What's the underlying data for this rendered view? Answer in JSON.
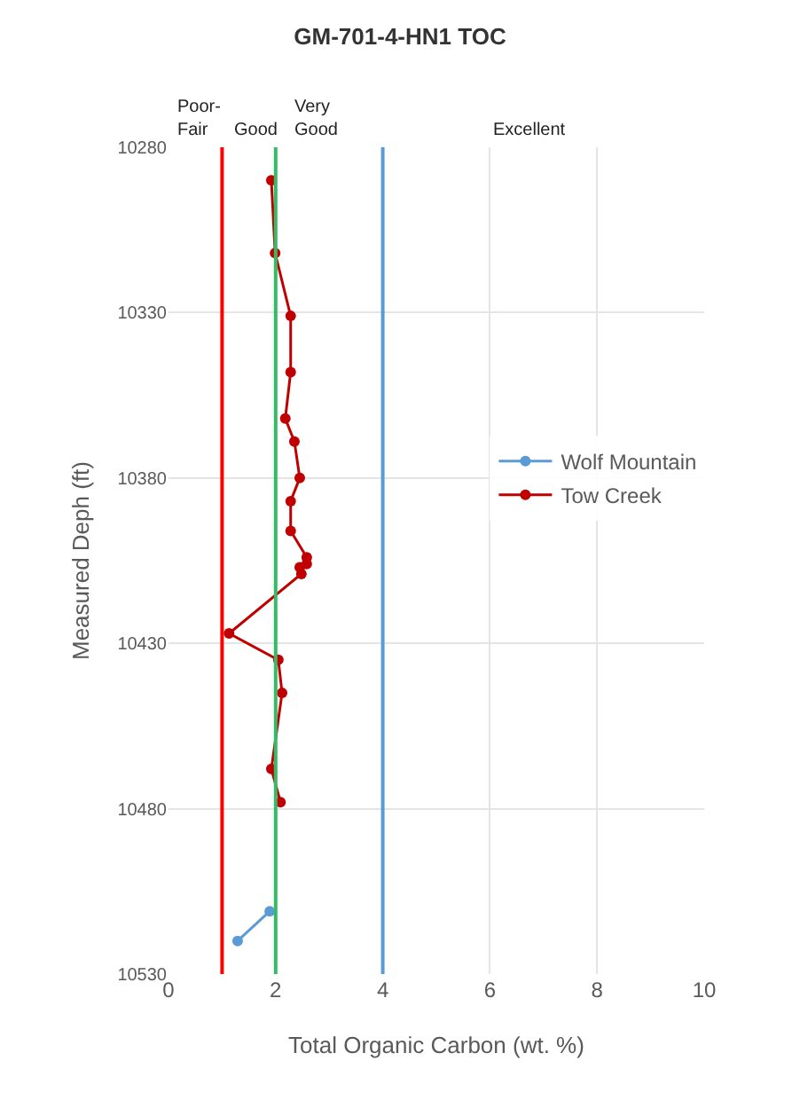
{
  "chart_data": {
    "type": "line",
    "title": "GM-701-4-HN1 TOC",
    "xlabel": "Total Organic Carbon (wt. %)",
    "ylabel": "Measured Deph (ft)",
    "series": [
      {
        "name": "Wolf Mountain",
        "color": "#5b9bd5",
        "x": [
          1.89,
          1.29
        ],
        "values": [
          10511,
          10520
        ]
      },
      {
        "name": "Tow Creek",
        "color": "#c00000",
        "x": [
          1.92,
          1.99,
          2.28,
          2.28,
          2.18,
          2.35,
          2.45,
          2.28,
          2.28,
          2.58,
          2.58,
          2.45,
          2.48,
          1.13,
          2.05,
          2.12,
          1.92,
          2.09
        ],
        "values": [
          10290,
          10312,
          10331,
          10348,
          10362,
          10369,
          10380,
          10387,
          10396,
          10404,
          10406,
          10407,
          10409,
          10427,
          10435,
          10445,
          10468,
          10478
        ]
      }
    ],
    "xlim": [
      0,
      10
    ],
    "xticks": [
      0,
      2,
      4,
      6,
      8,
      10
    ],
    "ylim": [
      10530,
      10280
    ],
    "yticks": [
      10280,
      10330,
      10380,
      10430,
      10480,
      10530
    ],
    "ref_lines": [
      {
        "axis": "x",
        "value": 1,
        "color": "#ff0000"
      },
      {
        "axis": "x",
        "value": 2,
        "color": "#33bb66"
      },
      {
        "axis": "x",
        "value": 4,
        "color": "#5b9bd5"
      }
    ],
    "annotations": [
      "Poor-\nFair",
      "Good",
      "Very\nGood",
      "Excellent"
    ],
    "grid": true,
    "legend": "right",
    "marker": "circle",
    "line_style": "solid"
  }
}
